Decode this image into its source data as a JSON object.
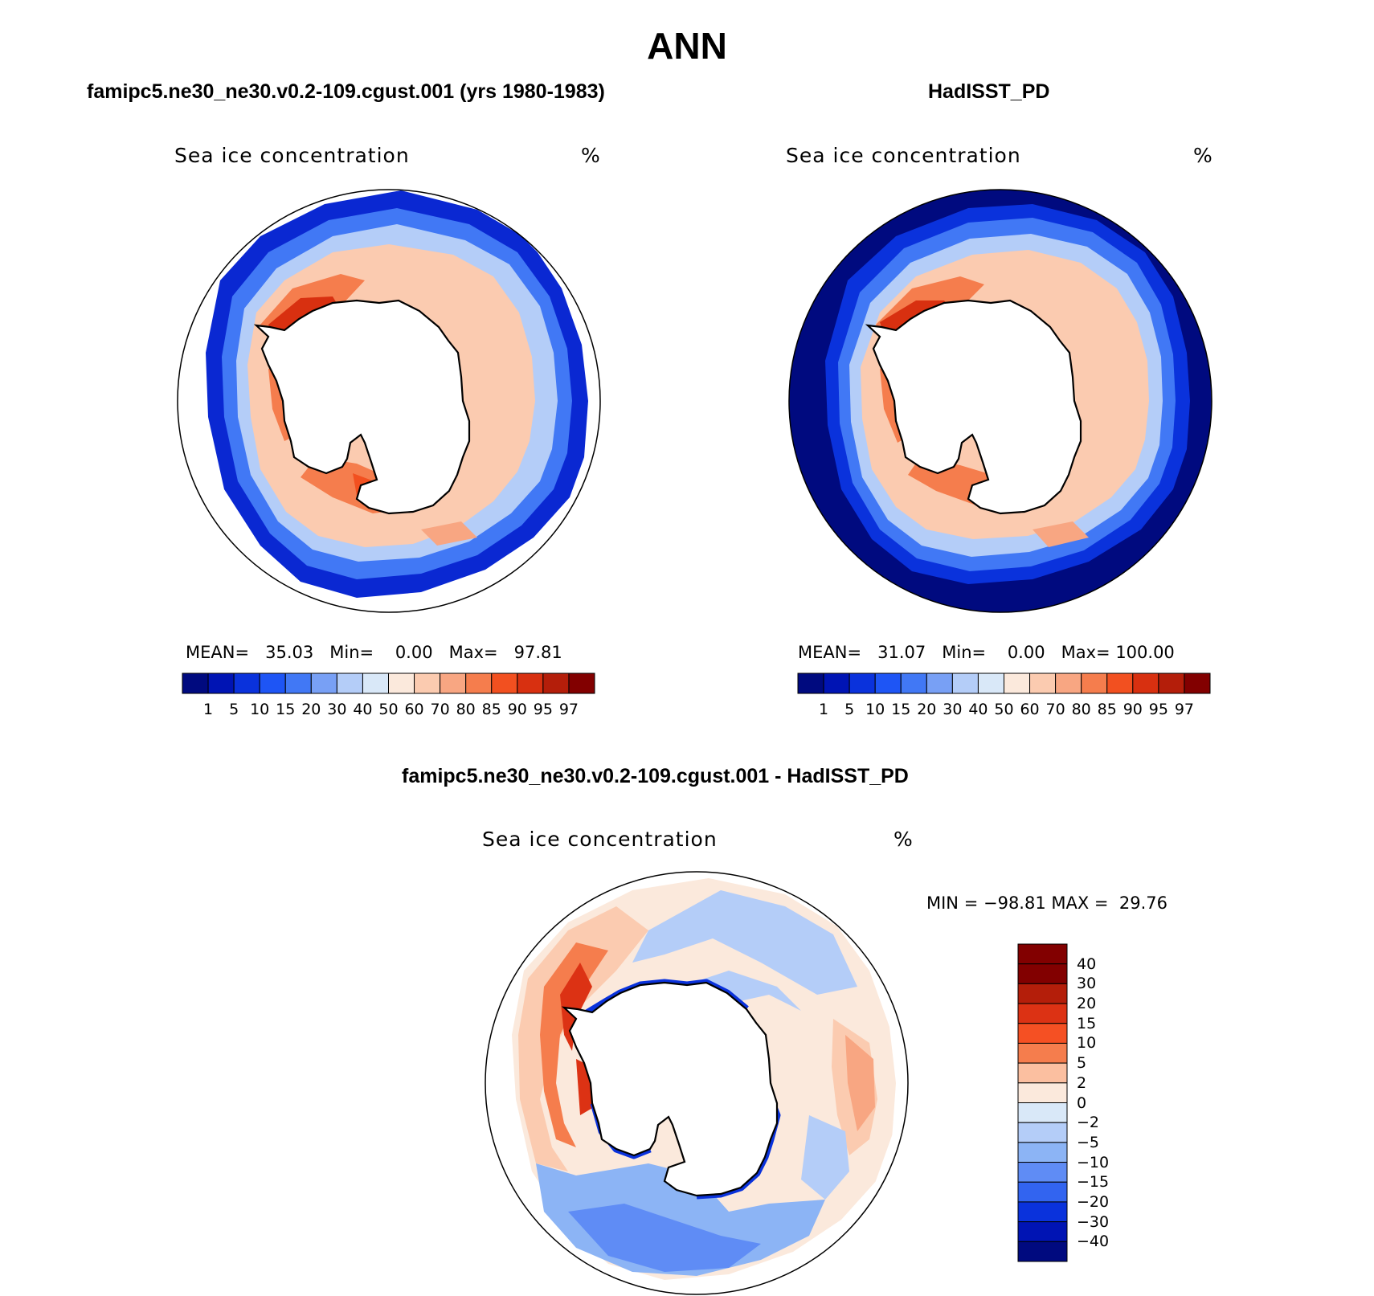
{
  "figure": {
    "title": "ANN"
  },
  "panels": [
    {
      "id": "model",
      "title": "famipc5.ne30_ne30.v0.2-109.cgust.001 (yrs 1980-1983)",
      "variable": "Sea ice concentration",
      "units": "%",
      "stats": {
        "mean_label": "MEAN=",
        "mean": "35.03",
        "min_label": "Min=",
        "min": "0.00",
        "max_label": "Max=",
        "max": "97.81"
      }
    },
    {
      "id": "obs",
      "title": "HadISST_PD",
      "variable": "Sea ice concentration",
      "units": "%",
      "stats": {
        "mean_label": "MEAN=",
        "mean": "31.07",
        "min_label": "Min=",
        "min": "0.00",
        "max_label": "Max=",
        "max": "100.00"
      }
    },
    {
      "id": "diff",
      "title": "famipc5.ne30_ne30.v0.2-109.cgust.001 - HadISST_PD",
      "variable": "Sea ice concentration",
      "units": "%",
      "stats": {
        "min_label": "MIN =",
        "min": "−98.81",
        "max_label": "MAX =",
        "max": "29.76"
      }
    }
  ],
  "colorbars": {
    "absolute": {
      "colors": [
        "#000a7f",
        "#0014b4",
        "#0a32dc",
        "#1e55f5",
        "#4178f5",
        "#78a0f5",
        "#b4cdf8",
        "#d9e8f8",
        "#fbe9dc",
        "#fbcbb0",
        "#f8a682",
        "#f57d4d",
        "#f25020",
        "#d83010",
        "#b41e0a",
        "#820000"
      ],
      "ticks": [
        "1",
        "5",
        "10",
        "15",
        "20",
        "30",
        "40",
        "50",
        "60",
        "70",
        "80",
        "85",
        "90",
        "95",
        "97"
      ]
    },
    "difference": {
      "colors": [
        "#820000",
        "#b41e0a",
        "#dc3214",
        "#f55023",
        "#f57d4d",
        "#fbbfa0",
        "#fbe9dc",
        "#d9e8f8",
        "#b4cdf8",
        "#8cb4f5",
        "#5f8cf5",
        "#3264f0",
        "#0a32dc",
        "#0014b4",
        "#000a7f"
      ],
      "ticks": [
        "40",
        "30",
        "20",
        "15",
        "10",
        "5",
        "2",
        "0",
        "−2",
        "−5",
        "−10",
        "−15",
        "−20",
        "−30",
        "−40"
      ]
    }
  },
  "chart_data": [
    {
      "type": "map",
      "projection": "south-polar-stereographic",
      "title": "famipc5.ne30_ne30.v0.2-109.cgust.001 (yrs 1980-1983)",
      "variable": "Sea ice concentration",
      "units": "%",
      "mean": 35.03,
      "min": 0.0,
      "max": 97.81,
      "levels": [
        1,
        5,
        10,
        15,
        20,
        30,
        40,
        50,
        60,
        70,
        80,
        85,
        90,
        95,
        97
      ]
    },
    {
      "type": "map",
      "projection": "south-polar-stereographic",
      "title": "HadISST_PD",
      "variable": "Sea ice concentration",
      "units": "%",
      "mean": 31.07,
      "min": 0.0,
      "max": 100.0,
      "levels": [
        1,
        5,
        10,
        15,
        20,
        30,
        40,
        50,
        60,
        70,
        80,
        85,
        90,
        95,
        97
      ]
    },
    {
      "type": "map",
      "projection": "south-polar-stereographic",
      "title": "famipc5.ne30_ne30.v0.2-109.cgust.001 - HadISST_PD",
      "variable": "Sea ice concentration",
      "units": "%",
      "min": -98.81,
      "max": 29.76,
      "levels": [
        40,
        30,
        20,
        15,
        10,
        5,
        2,
        0,
        -2,
        -5,
        -10,
        -15,
        -20,
        -30,
        -40
      ]
    }
  ]
}
